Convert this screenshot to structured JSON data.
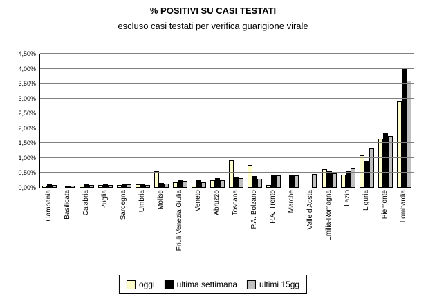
{
  "title": "% POSITIVI SU CASI TESTATI",
  "subtitle": "escluso casi testati per verifica guarigione virale",
  "chart_data": {
    "type": "bar",
    "title": "% POSITIVI SU CASI TESTATI",
    "subtitle": "escluso casi testati per verifica guarigione virale",
    "categories": [
      "Campania",
      "Basilicata",
      "Calabria",
      "Puglia",
      "Sardegna",
      "Umbria",
      "Molise",
      "Friuli Venezia Giulia",
      "Veneto",
      "Abruzzo",
      "Toscana",
      "P.A. Bolzano",
      "P.A. Trento",
      "Marche",
      "Valle d'Aosta",
      "Emilia-Romagna",
      "Lazio",
      "Liguria",
      "Piemonte",
      "Lombardia"
    ],
    "series": [
      {
        "name": "oggi",
        "color": "#FFFFCC",
        "values": [
          0.03,
          0.01,
          0.03,
          0.05,
          0.05,
          0.08,
          0.5,
          0.15,
          0.03,
          0.2,
          0.88,
          0.72,
          0.05,
          0.0,
          0.0,
          0.57,
          0.4,
          1.05,
          1.6,
          2.85
        ]
      },
      {
        "name": "ultima settimana",
        "color": "#000000",
        "values": [
          0.07,
          0.03,
          0.06,
          0.07,
          0.1,
          0.1,
          0.12,
          0.22,
          0.2,
          0.27,
          0.32,
          0.35,
          0.4,
          0.4,
          0.0,
          0.52,
          0.52,
          0.85,
          1.78,
          4.0
        ]
      },
      {
        "name": "ultimi 15gg",
        "color": "#C0C0C0",
        "values": [
          0.05,
          0.02,
          0.04,
          0.05,
          0.08,
          0.05,
          0.1,
          0.18,
          0.15,
          0.22,
          0.28,
          0.25,
          0.38,
          0.38,
          0.42,
          0.45,
          0.6,
          1.28,
          1.7,
          3.55
        ]
      }
    ],
    "ylim": [
      0,
      4.5
    ],
    "ytick_step": 0.5,
    "ytick_labels": [
      "0,00%",
      "0,50%",
      "1,00%",
      "1,50%",
      "2,00%",
      "2,50%",
      "3,00%",
      "3,50%",
      "4,00%",
      "4,50%"
    ],
    "grid": true,
    "legend_position": "bottom",
    "value_unit": "%"
  }
}
